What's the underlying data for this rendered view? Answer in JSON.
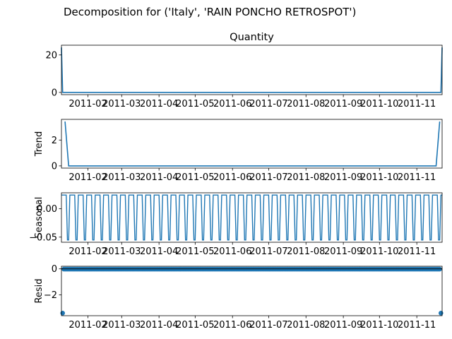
{
  "suptitle": "Decomposition for ('Italy', 'RAIN PONCHO RETROSPOT')",
  "colors": {
    "line": "#1f77b4",
    "axis": "#000000"
  },
  "x_tick_labels": [
    "2011-02",
    "2011-03",
    "2011-04",
    "2011-05",
    "2011-06",
    "2011-07",
    "2011-08",
    "2011-09",
    "2011-10",
    "2011-11"
  ],
  "chart_data": [
    {
      "type": "line",
      "title": "Quantity",
      "ylabel": "",
      "x_range": [
        "2011-01-10",
        "2011-11-22"
      ],
      "ylim": [
        -1.2,
        25.2
      ],
      "yticks": [
        0,
        20
      ],
      "ytick_labels": [
        "0",
        "20"
      ],
      "points": [
        [
          "2011-01-10",
          24
        ],
        [
          "2011-01-11",
          0
        ],
        [
          "2011-11-21",
          0
        ],
        [
          "2011-11-22",
          24
        ]
      ]
    },
    {
      "type": "line",
      "title": "",
      "ylabel": "Trend",
      "x_range": [
        "2011-01-10",
        "2011-11-22"
      ],
      "ylim": [
        -0.17,
        3.6
      ],
      "yticks": [
        0,
        2
      ],
      "ytick_labels": [
        "0",
        "2"
      ],
      "points": [
        [
          "2011-01-13",
          3.43
        ],
        [
          "2011-01-16",
          0
        ],
        [
          "2011-11-17",
          0
        ],
        [
          "2011-11-20",
          3.43
        ]
      ]
    },
    {
      "type": "line",
      "title": "",
      "ylabel": "Seasonal",
      "x_range": [
        "2011-01-10",
        "2011-11-22"
      ],
      "ylim": [
        -0.059,
        0.028
      ],
      "yticks": [
        0.0,
        -0.05
      ],
      "ytick_labels": [
        "0.00",
        "−0.05"
      ],
      "seasonal_pattern": [
        0.024,
        0.024,
        0.024,
        0.024,
        0.024,
        -0.055,
        -0.055
      ],
      "period_days": 7
    },
    {
      "type": "scatter",
      "title": "",
      "ylabel": "Resid",
      "x_range": [
        "2011-01-10",
        "2011-11-22"
      ],
      "ylim": [
        -3.6,
        0.2
      ],
      "yticks": [
        0,
        -2
      ],
      "ytick_labels": [
        "0",
        "−2"
      ],
      "baseline": -0.02,
      "outliers": [
        [
          "2011-01-11",
          -3.4
        ],
        [
          "2011-11-21",
          -3.4
        ]
      ]
    }
  ]
}
